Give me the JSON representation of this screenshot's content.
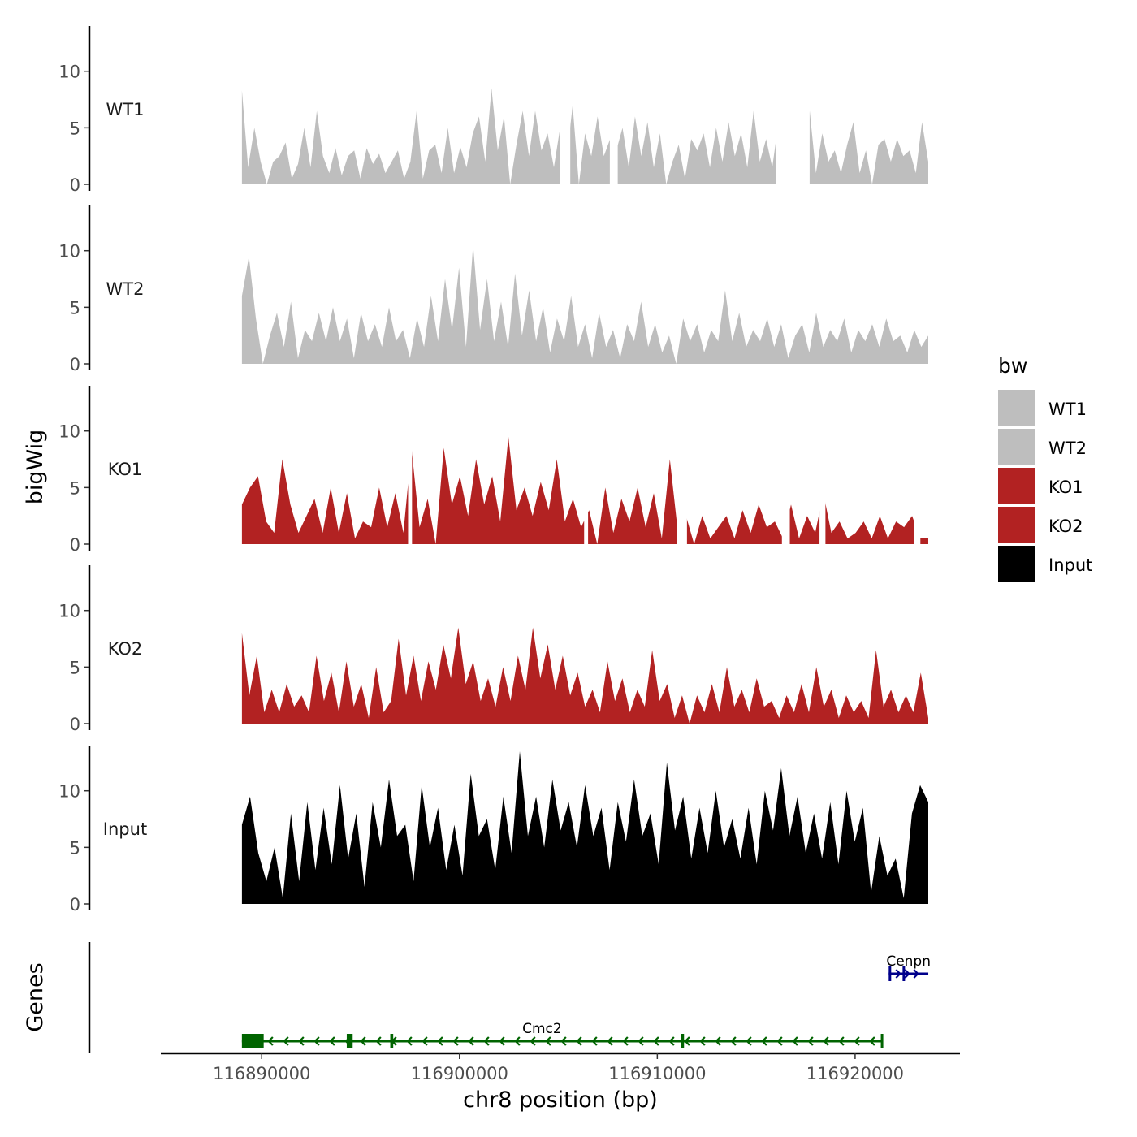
{
  "chart_data": {
    "type": "area",
    "layout": "stacked-tracks",
    "ylabel": "bigWig",
    "genes_label": "Genes",
    "xlabel": "chr8 position (bp)",
    "xlim": [
      116884900,
      116925300
    ],
    "x_ticks": [
      116890000,
      116900000,
      116910000,
      116920000
    ],
    "x_tick_labels": [
      "116890000",
      "116900000",
      "116910000",
      "116920000"
    ],
    "data_range": [
      116889000,
      116923700
    ],
    "ylim": [
      0,
      14
    ],
    "y_ticks": [
      0,
      5,
      10
    ],
    "y_tick_labels": [
      "0",
      "5",
      "10"
    ],
    "legend": {
      "title": "bw",
      "position": "right",
      "entries": [
        {
          "label": "WT1",
          "color": "#bebebe"
        },
        {
          "label": "WT2",
          "color": "#bebebe"
        },
        {
          "label": "KO1",
          "color": "#b22222"
        },
        {
          "label": "KO2",
          "color": "#b22222"
        },
        {
          "label": "Input",
          "color": "#000000"
        }
      ]
    },
    "series": [
      {
        "name": "WT1",
        "color": "#bebebe",
        "values": [
          8.3,
          1.5,
          5.0,
          2.0,
          0,
          2.0,
          2.5,
          3.7,
          0.5,
          1.8,
          5.0,
          1.5,
          6.5,
          2.5,
          1.0,
          3.2,
          0.8,
          2.5,
          3.0,
          0.5,
          3.2,
          1.8,
          2.7,
          1.0,
          2.0,
          3.0,
          0.5,
          2.0,
          6.5,
          0.5,
          3.0,
          3.5,
          1.0,
          5.0,
          1.0,
          3.3,
          1.5,
          4.5,
          6.0,
          2.0,
          8.5,
          3.0,
          6.0,
          0,
          3.5,
          6.5,
          2.5,
          6.5,
          3.0,
          4.5,
          1.5,
          5.0,
          2.0,
          7.0,
          0,
          4.5,
          2.5,
          6.0,
          2.5,
          4.0,
          3.0,
          5.0,
          1.5,
          6.0,
          2.5,
          5.5,
          1.5,
          4.5,
          0,
          2.0,
          3.5,
          0.5,
          4.0,
          3.0,
          4.5,
          1.5,
          5.0,
          2.0,
          5.5,
          2.5,
          4.5,
          1.5,
          6.5,
          2.0,
          4.0,
          1.5,
          5.5,
          2.0,
          4.0,
          1.5,
          3.0,
          6.5,
          1.0,
          4.5,
          2.0,
          3.0,
          1.0,
          3.5,
          5.5,
          1.0,
          3.0,
          0,
          3.5,
          4.0,
          2.0,
          4.0,
          2.5,
          3.0,
          1.0,
          5.5,
          2.0
        ],
        "gaps": [
          [
            116916000,
            116917700
          ],
          [
            116907600,
            116908000
          ],
          [
            116905100,
            116905600
          ]
        ]
      },
      {
        "name": "WT2",
        "color": "#bebebe",
        "values": [
          6.0,
          9.5,
          4.0,
          0,
          2.5,
          4.5,
          1.5,
          5.5,
          0.5,
          3.0,
          2.0,
          4.5,
          2.0,
          5.0,
          2.0,
          4.0,
          0.5,
          4.5,
          2.0,
          3.5,
          1.5,
          5.0,
          2.0,
          3.0,
          0.5,
          4.0,
          1.5,
          6.0,
          2.0,
          7.5,
          3.0,
          8.5,
          1.5,
          10.5,
          3.0,
          7.5,
          2.0,
          5.5,
          1.5,
          8.0,
          2.5,
          6.5,
          2.0,
          5.0,
          1.0,
          4.0,
          2.0,
          6.0,
          1.5,
          3.5,
          0.5,
          4.5,
          1.5,
          3.0,
          0.5,
          3.5,
          2.0,
          5.5,
          1.5,
          3.5,
          1.0,
          2.5,
          0,
          4.0,
          2.0,
          3.5,
          1.0,
          3.0,
          2.0,
          6.5,
          2.0,
          4.5,
          1.5,
          3.0,
          2.0,
          4.0,
          1.5,
          3.5,
          0.5,
          2.5,
          3.5,
          1.0,
          4.5,
          1.5,
          3.0,
          2.0,
          4.0,
          1.0,
          3.0,
          2.0,
          3.5,
          1.5,
          4.0,
          2.0,
          2.5,
          1.0,
          3.0,
          1.5,
          2.5
        ],
        "gaps": []
      },
      {
        "name": "KO1",
        "color": "#b22222",
        "values": [
          3.5,
          5.0,
          6.0,
          2.0,
          1.0,
          7.5,
          3.5,
          1.0,
          2.5,
          4.0,
          1.0,
          5.0,
          1.0,
          4.5,
          0.5,
          2.0,
          1.5,
          5.0,
          1.5,
          4.5,
          1.0,
          8.5,
          1.5,
          4.0,
          0,
          8.5,
          3.5,
          6.0,
          2.5,
          7.5,
          3.5,
          6.0,
          2.0,
          9.5,
          3.0,
          5.0,
          2.5,
          5.5,
          3.0,
          7.5,
          2.0,
          4.0,
          1.5,
          3.0,
          0,
          5.0,
          1.0,
          4.0,
          2.0,
          5.0,
          1.5,
          4.5,
          0.5,
          7.5,
          1.0,
          2.5,
          0,
          2.5,
          0.5,
          1.5,
          2.5,
          0.5,
          3.0,
          1.0,
          3.5,
          1.5,
          2.0,
          0.5,
          3.5,
          0.5,
          2.5,
          1.0,
          4.5,
          1.0,
          2.0,
          0.5,
          1.0,
          2.0,
          0.5,
          2.5,
          0.5,
          2.0,
          1.5,
          2.5,
          0.5,
          0.5
        ],
        "gaps": [
          [
            116911000,
            116911500
          ],
          [
            116916300,
            116916700
          ],
          [
            116906300,
            116906500
          ],
          [
            116897400,
            116897600
          ],
          [
            116918200,
            116918500
          ],
          [
            116923000,
            116923300
          ]
        ]
      },
      {
        "name": "KO2",
        "color": "#b22222",
        "values": [
          8.0,
          2.5,
          6.0,
          1.0,
          3.0,
          1.0,
          3.5,
          1.5,
          2.5,
          1.0,
          6.0,
          2.0,
          4.5,
          1.0,
          5.5,
          1.5,
          3.5,
          0.5,
          5.0,
          1.0,
          2.0,
          7.5,
          2.5,
          6.0,
          2.0,
          5.5,
          3.0,
          7.0,
          4.0,
          8.5,
          3.5,
          5.5,
          2.0,
          4.0,
          1.5,
          5.0,
          2.0,
          6.0,
          3.0,
          8.5,
          4.0,
          7.0,
          3.0,
          6.0,
          2.5,
          4.5,
          1.5,
          3.0,
          1.0,
          5.5,
          2.0,
          4.0,
          1.0,
          3.0,
          1.5,
          6.5,
          2.0,
          3.5,
          0.5,
          2.5,
          0,
          2.5,
          1.0,
          3.5,
          1.0,
          5.0,
          1.5,
          3.0,
          1.0,
          4.0,
          1.5,
          2.0,
          0.5,
          2.5,
          1.0,
          3.5,
          1.0,
          5.0,
          1.5,
          3.0,
          0.5,
          2.5,
          1.0,
          2.0,
          0.5,
          6.5,
          1.5,
          3.0,
          1.0,
          2.5,
          1.0,
          4.5,
          0.5
        ],
        "gaps": []
      },
      {
        "name": "Input",
        "color": "#000000",
        "values": [
          7.0,
          9.5,
          4.5,
          2.0,
          5.0,
          0.5,
          8.0,
          2.0,
          9.0,
          3.0,
          8.5,
          3.5,
          10.5,
          4.0,
          8.0,
          1.5,
          9.0,
          5.0,
          11.0,
          6.0,
          7.0,
          2.0,
          10.5,
          5.0,
          8.5,
          3.0,
          7.0,
          2.5,
          11.5,
          6.0,
          7.5,
          3.0,
          9.5,
          4.5,
          13.5,
          6.0,
          9.5,
          5.0,
          11.0,
          6.5,
          9.0,
          5.0,
          10.5,
          6.0,
          8.5,
          3.0,
          9.0,
          5.5,
          11.0,
          6.0,
          8.0,
          3.5,
          12.5,
          6.5,
          9.5,
          4.0,
          8.5,
          4.5,
          10.0,
          5.0,
          7.5,
          4.0,
          8.5,
          3.5,
          10.0,
          6.5,
          12.0,
          6.0,
          9.5,
          4.5,
          8.0,
          4.0,
          9.0,
          3.5,
          10.0,
          5.5,
          8.5,
          1.0,
          6.0,
          2.5,
          4.0,
          0.5,
          8.0,
          10.5,
          9.0
        ],
        "gaps": []
      }
    ],
    "genes": [
      {
        "name": "Cmc2",
        "strand": "-",
        "color": "#006400",
        "start": 116889000,
        "end": 116921400,
        "exons": [
          [
            116889000,
            116890100
          ],
          [
            116894300,
            116894600
          ],
          [
            116896500,
            116896650
          ],
          [
            116911200,
            116911350
          ],
          [
            116921300,
            116921400
          ]
        ]
      },
      {
        "name": "Cenpn",
        "strand": "+",
        "color": "#00008b",
        "start": 116921700,
        "end": 116923700,
        "exons": [
          [
            116921700,
            116921800
          ],
          [
            116922400,
            116922500
          ]
        ]
      }
    ]
  }
}
